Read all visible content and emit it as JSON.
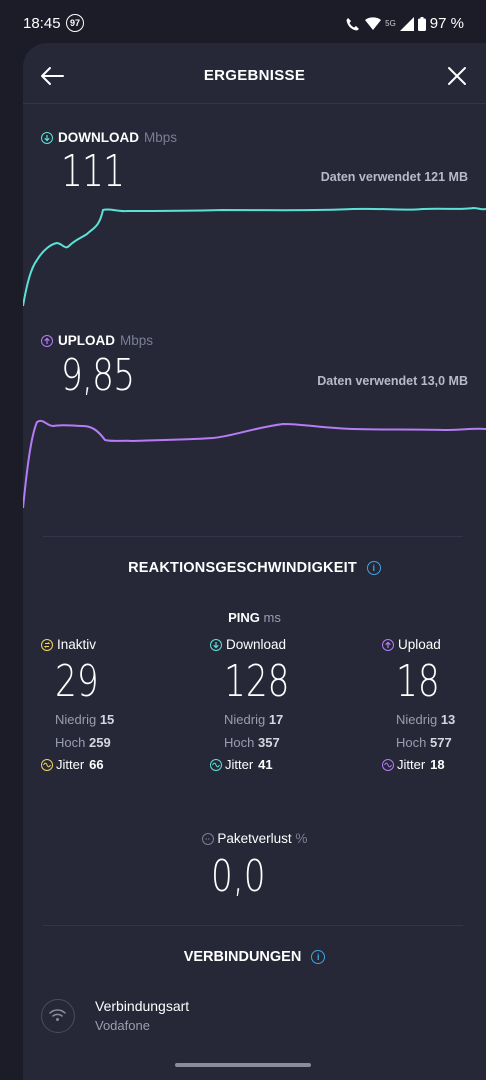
{
  "status_bar": {
    "time": "18:45",
    "badge": "97",
    "network": "5G",
    "battery": "97 %"
  },
  "header": {
    "title": "ERGEBNISSE"
  },
  "download": {
    "label": "DOWNLOAD",
    "unit": "Mbps",
    "value": "111",
    "used_label": "Daten verwendet 121 MB",
    "color": "#5ce1d6"
  },
  "upload": {
    "label": "UPLOAD",
    "unit": "Mbps",
    "value": "9,85",
    "used_label": "Daten verwendet 13,0 MB",
    "color": "#b47cf5"
  },
  "reaktion": {
    "title": "REAKTIONSGESCHWINDIGKEIT"
  },
  "ping": {
    "label": "PING",
    "unit": "ms",
    "columns": [
      {
        "label": "Inaktiv",
        "value": "29",
        "low_label": "Niedrig",
        "low": "15",
        "high_label": "Hoch",
        "high": "259",
        "jitter_label": "Jitter",
        "jitter": "66",
        "color": "#f0d65a"
      },
      {
        "label": "Download",
        "value": "128",
        "low_label": "Niedrig",
        "low": "17",
        "high_label": "Hoch",
        "high": "357",
        "jitter_label": "Jitter",
        "jitter": "41",
        "color": "#5ce1d6"
      },
      {
        "label": "Upload",
        "value": "18",
        "low_label": "Niedrig",
        "low": "13",
        "high_label": "Hoch",
        "high": "577",
        "jitter_label": "Jitter",
        "jitter": "18",
        "color": "#b47cf5"
      }
    ]
  },
  "paketverlust": {
    "label": "Paketverlust",
    "unit": "%",
    "value": "0,0"
  },
  "verbindungen": {
    "title": "VERBINDUNGEN",
    "type_label": "Verbindungsart",
    "type_value": "Vodafone"
  }
}
